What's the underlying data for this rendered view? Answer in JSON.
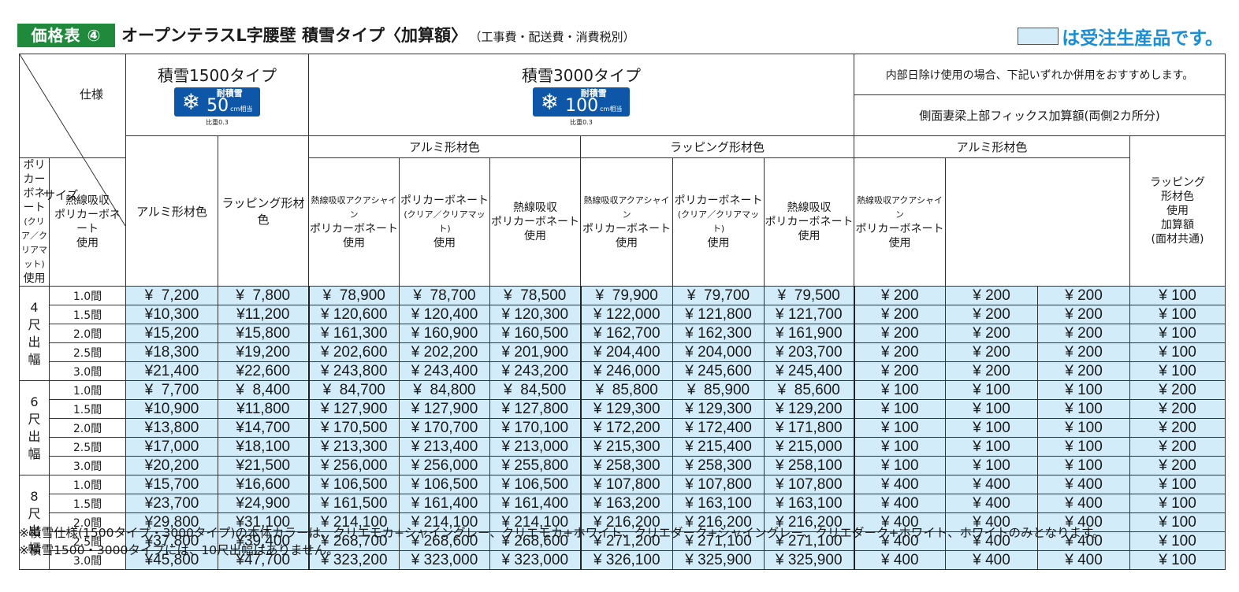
{
  "header": {
    "badge": "価格表 ④",
    "title": "オープンテラスL字腰壁 積雪タイプ〈加算額〉",
    "subtitle": "（工事費・配送費・消費税別）",
    "legend_text": "は受注生産品です。",
    "legend_color": "#d2ecf9"
  },
  "table": {
    "corner_spec": "仕様",
    "corner_size": "サイズ",
    "type1500": {
      "name": "積雪1500タイプ",
      "badge_label": "耐積雪",
      "badge_num": "50",
      "badge_unit": "cm相当",
      "ratio": "比重0.3"
    },
    "type3000": {
      "name": "積雪3000タイプ",
      "badge_label": "耐積雪",
      "badge_num": "100",
      "badge_unit": "cm相当",
      "ratio": "比重0.3"
    },
    "right_note": "内部日除け使用の場合、下記いずれか併用をおすすめします。",
    "right_sub": "側面妻梁上部フィックス加算額(両側2カ所分)",
    "col_alumi_color": "アルミ形材色",
    "col_wrap_color": "ラッピング形材色",
    "group_alumi": "アルミ形材色",
    "group_wrap": "ラッピング形材色",
    "group_alumi_right": "アルミ形材色",
    "sub_cols": {
      "poly1": "ポリカーボネート",
      "poly2": "(クリア／クリアマット)",
      "poly3": "使用",
      "heat1": "熱線吸収",
      "heat2": "ポリカーボネート",
      "heat3": "使用",
      "aqua1": "熱線吸収アクアシャイン",
      "aqua2": "ポリカーボネート",
      "aqua3": "使用"
    },
    "wrap_add": [
      "ラッピング",
      "形材色",
      "使用",
      "加算額",
      "(面材共通)"
    ],
    "groups": [
      {
        "label": [
          "4",
          "尺",
          "出",
          "幅"
        ],
        "rows": [
          {
            "size": "1.0間",
            "v": [
              "¥  7,200",
              "¥  7,800",
              "¥  78,900",
              "¥  78,700",
              "¥  78,500",
              "¥  79,900",
              "¥  79,700",
              "¥  79,500",
              "¥ 200",
              "¥ 200",
              "¥ 200",
              "¥ 100"
            ]
          },
          {
            "size": "1.5間",
            "v": [
              "¥10,300",
              "¥11,200",
              "¥ 120,600",
              "¥ 120,400",
              "¥ 120,300",
              "¥ 122,000",
              "¥ 121,800",
              "¥ 121,700",
              "¥ 200",
              "¥ 200",
              "¥ 200",
              "¥ 100"
            ]
          },
          {
            "size": "2.0間",
            "v": [
              "¥15,200",
              "¥15,800",
              "¥ 161,300",
              "¥ 160,900",
              "¥ 160,500",
              "¥ 162,700",
              "¥ 162,300",
              "¥ 161,900",
              "¥ 200",
              "¥ 200",
              "¥ 200",
              "¥ 100"
            ]
          },
          {
            "size": "2.5間",
            "v": [
              "¥18,300",
              "¥19,200",
              "¥ 202,600",
              "¥ 202,200",
              "¥ 201,900",
              "¥ 204,400",
              "¥ 204,000",
              "¥ 203,700",
              "¥ 200",
              "¥ 200",
              "¥ 200",
              "¥ 100"
            ]
          },
          {
            "size": "3.0間",
            "v": [
              "¥21,400",
              "¥22,600",
              "¥ 243,800",
              "¥ 243,400",
              "¥ 243,200",
              "¥ 246,000",
              "¥ 245,600",
              "¥ 245,400",
              "¥ 200",
              "¥ 200",
              "¥ 200",
              "¥ 100"
            ]
          }
        ]
      },
      {
        "label": [
          "6",
          "尺",
          "出",
          "幅"
        ],
        "rows": [
          {
            "size": "1.0間",
            "v": [
              "¥  7,700",
              "¥  8,400",
              "¥  84,700",
              "¥  84,800",
              "¥  84,500",
              "¥  85,800",
              "¥  85,900",
              "¥  85,600",
              "¥ 100",
              "¥ 100",
              "¥ 100",
              "¥ 200"
            ]
          },
          {
            "size": "1.5間",
            "v": [
              "¥10,900",
              "¥11,800",
              "¥ 127,900",
              "¥ 127,900",
              "¥ 127,800",
              "¥ 129,300",
              "¥ 129,300",
              "¥ 129,200",
              "¥ 100",
              "¥ 100",
              "¥ 100",
              "¥ 200"
            ]
          },
          {
            "size": "2.0間",
            "v": [
              "¥13,800",
              "¥14,700",
              "¥ 170,500",
              "¥ 170,700",
              "¥ 170,100",
              "¥ 172,200",
              "¥ 172,400",
              "¥ 171,800",
              "¥ 100",
              "¥ 100",
              "¥ 100",
              "¥ 200"
            ]
          },
          {
            "size": "2.5間",
            "v": [
              "¥17,000",
              "¥18,100",
              "¥ 213,300",
              "¥ 213,400",
              "¥ 213,000",
              "¥ 215,300",
              "¥ 215,400",
              "¥ 215,000",
              "¥ 100",
              "¥ 100",
              "¥ 100",
              "¥ 200"
            ]
          },
          {
            "size": "3.0間",
            "v": [
              "¥20,200",
              "¥21,500",
              "¥ 256,000",
              "¥ 256,000",
              "¥ 255,800",
              "¥ 258,300",
              "¥ 258,300",
              "¥ 258,100",
              "¥ 100",
              "¥ 100",
              "¥ 100",
              "¥ 200"
            ]
          }
        ]
      },
      {
        "label": [
          "8",
          "尺",
          "出",
          "幅"
        ],
        "rows": [
          {
            "size": "1.0間",
            "v": [
              "¥15,700",
              "¥16,600",
              "¥ 106,500",
              "¥ 106,500",
              "¥ 106,500",
              "¥ 107,800",
              "¥ 107,800",
              "¥ 107,800",
              "¥ 400",
              "¥ 400",
              "¥ 400",
              "¥ 100"
            ]
          },
          {
            "size": "1.5間",
            "v": [
              "¥23,700",
              "¥24,900",
              "¥ 161,500",
              "¥ 161,400",
              "¥ 161,400",
              "¥ 163,200",
              "¥ 163,100",
              "¥ 163,100",
              "¥ 400",
              "¥ 400",
              "¥ 400",
              "¥ 100"
            ]
          },
          {
            "size": "2.0間",
            "v": [
              "¥29,800",
              "¥31,100",
              "¥ 214,100",
              "¥ 214,100",
              "¥ 214,100",
              "¥ 216,200",
              "¥ 216,200",
              "¥ 216,200",
              "¥ 400",
              "¥ 400",
              "¥ 400",
              "¥ 100"
            ]
          },
          {
            "size": "2.5間",
            "v": [
              "¥37,800",
              "¥39,400",
              "¥ 268,700",
              "¥ 268,600",
              "¥ 268,600",
              "¥ 271,200",
              "¥ 271,100",
              "¥ 271,100",
              "¥ 400",
              "¥ 400",
              "¥ 400",
              "¥ 100"
            ]
          },
          {
            "size": "3.0間",
            "v": [
              "¥45,800",
              "¥47,700",
              "¥ 323,200",
              "¥ 323,000",
              "¥ 323,000",
              "¥ 326,100",
              "¥ 325,900",
              "¥ 325,900",
              "¥ 400",
              "¥ 400",
              "¥ 400",
              "¥ 100"
            ]
          }
        ]
      }
    ]
  },
  "notes": [
    "※積雪仕様(1500タイプ・3000タイプ)の本体カラーは、クリエモカ+シャイングレー、クリエモカ+ホワイト、クリエダーク+シャイングレー、クリエダーク+ホワイト、ホワイトのみとなります。",
    "※積雪1500・3000タイプには、10尺出幅はありません。"
  ]
}
